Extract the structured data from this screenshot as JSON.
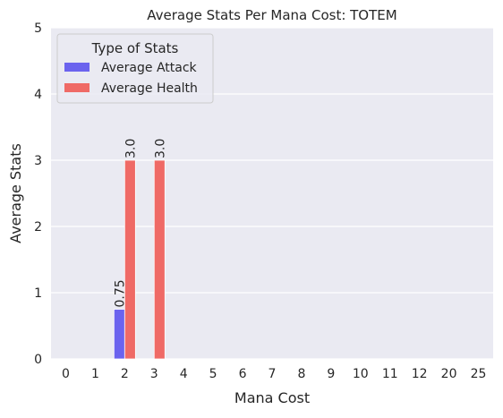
{
  "chart_data": {
    "type": "bar",
    "title": "Average Stats Per Mana Cost: TOTEM",
    "xlabel": "Mana Cost",
    "ylabel": "Average Stats",
    "categories": [
      "0",
      "1",
      "2",
      "3",
      "4",
      "5",
      "6",
      "7",
      "8",
      "9",
      "10",
      "11",
      "12",
      "20",
      "25"
    ],
    "series": [
      {
        "name": "Average Attack",
        "color": "#6b63ee",
        "values": [
          0,
          0,
          0.75,
          0,
          0,
          0,
          0,
          0,
          0,
          0,
          0,
          0,
          0,
          0,
          0
        ]
      },
      {
        "name": "Average Health",
        "color": "#ef6a66",
        "values": [
          0,
          0,
          3.0,
          3.0,
          0,
          0,
          0,
          0,
          0,
          0,
          0,
          0,
          0,
          0,
          0
        ]
      }
    ],
    "ylim": [
      0,
      5
    ],
    "yticks": [
      0,
      1,
      2,
      3,
      4,
      5
    ],
    "data_labels": [
      {
        "series": 0,
        "category": "2",
        "text": "0.75"
      },
      {
        "series": 1,
        "category": "2",
        "text": "3.0"
      },
      {
        "series": 1,
        "category": "3",
        "text": "3.0"
      }
    ],
    "legend": {
      "title": "Type of Stats",
      "position": "top-left"
    },
    "grid": true,
    "colors": {
      "plot_background": "#eaeaf2",
      "grid": "#ffffff",
      "text": "#262626"
    }
  }
}
